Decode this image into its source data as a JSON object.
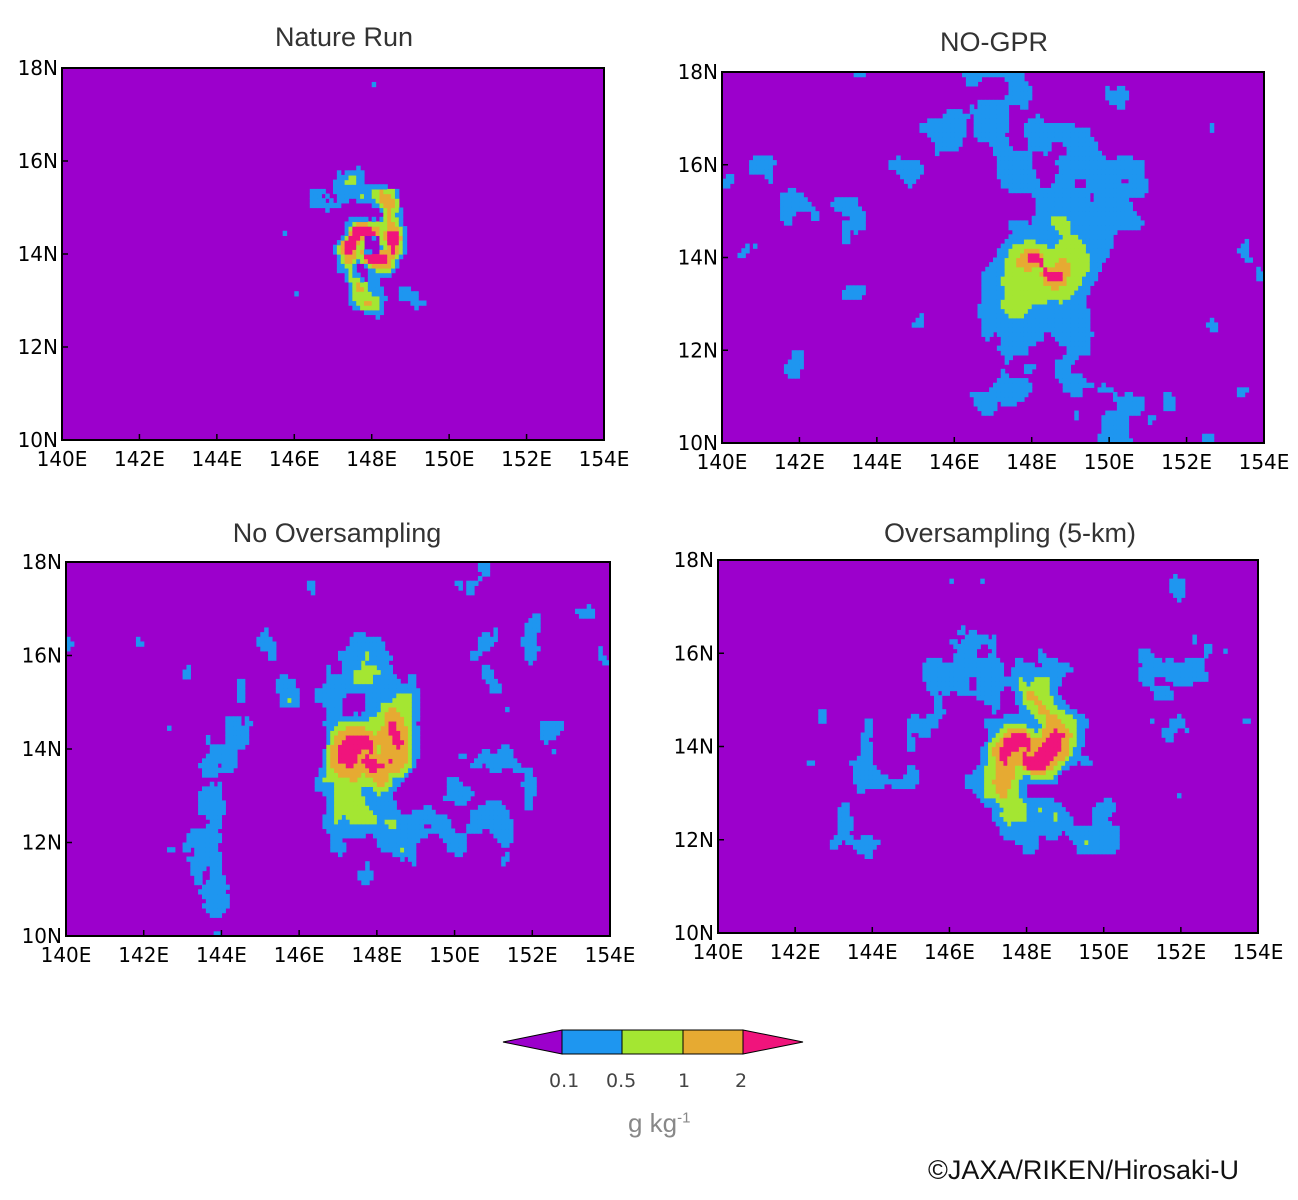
{
  "chart_data": [
    {
      "type": "heatmap",
      "title": "Nature Run",
      "x_ticks": [
        "140E",
        "142E",
        "144E",
        "146E",
        "148E",
        "150E",
        "152E",
        "154E"
      ],
      "y_ticks": [
        "10N",
        "12N",
        "14N",
        "16N",
        "18N"
      ],
      "xlim": [
        140,
        154
      ],
      "ylim": [
        10,
        18
      ],
      "center": [
        148.0,
        14.2
      ]
    },
    {
      "type": "heatmap",
      "title": "NO-GPR",
      "x_ticks": [
        "140E",
        "142E",
        "144E",
        "146E",
        "148E",
        "150E",
        "152E",
        "154E"
      ],
      "y_ticks": [
        "10N",
        "12N",
        "14N",
        "16N",
        "18N"
      ],
      "xlim": [
        140,
        154
      ],
      "ylim": [
        10,
        18
      ],
      "center": [
        148.3,
        13.8
      ]
    },
    {
      "type": "heatmap",
      "title": "No Oversampling",
      "x_ticks": [
        "140E",
        "142E",
        "144E",
        "146E",
        "148E",
        "150E",
        "152E",
        "154E"
      ],
      "y_ticks": [
        "10N",
        "12N",
        "14N",
        "16N",
        "18N"
      ],
      "xlim": [
        140,
        154
      ],
      "ylim": [
        10,
        18
      ],
      "center": [
        147.8,
        13.9
      ]
    },
    {
      "type": "heatmap",
      "title": "Oversampling (5-km)",
      "x_ticks": [
        "140E",
        "142E",
        "144E",
        "146E",
        "148E",
        "150E",
        "152E",
        "154E"
      ],
      "y_ticks": [
        "10N",
        "12N",
        "14N",
        "16N",
        "18N"
      ],
      "xlim": [
        140,
        154
      ],
      "ylim": [
        10,
        18
      ],
      "center": [
        148.0,
        13.9
      ]
    }
  ],
  "colorbar": {
    "levels": [
      "0.1",
      "0.5",
      "1",
      "2"
    ],
    "colors": [
      "#9c00cc",
      "#1e96f0",
      "#a4e632",
      "#e6aa32",
      "#f0147c"
    ],
    "unit_base": "g kg",
    "unit_exp": "-1"
  },
  "credit": "©JAXA/RIKEN/Hirosaki-U"
}
